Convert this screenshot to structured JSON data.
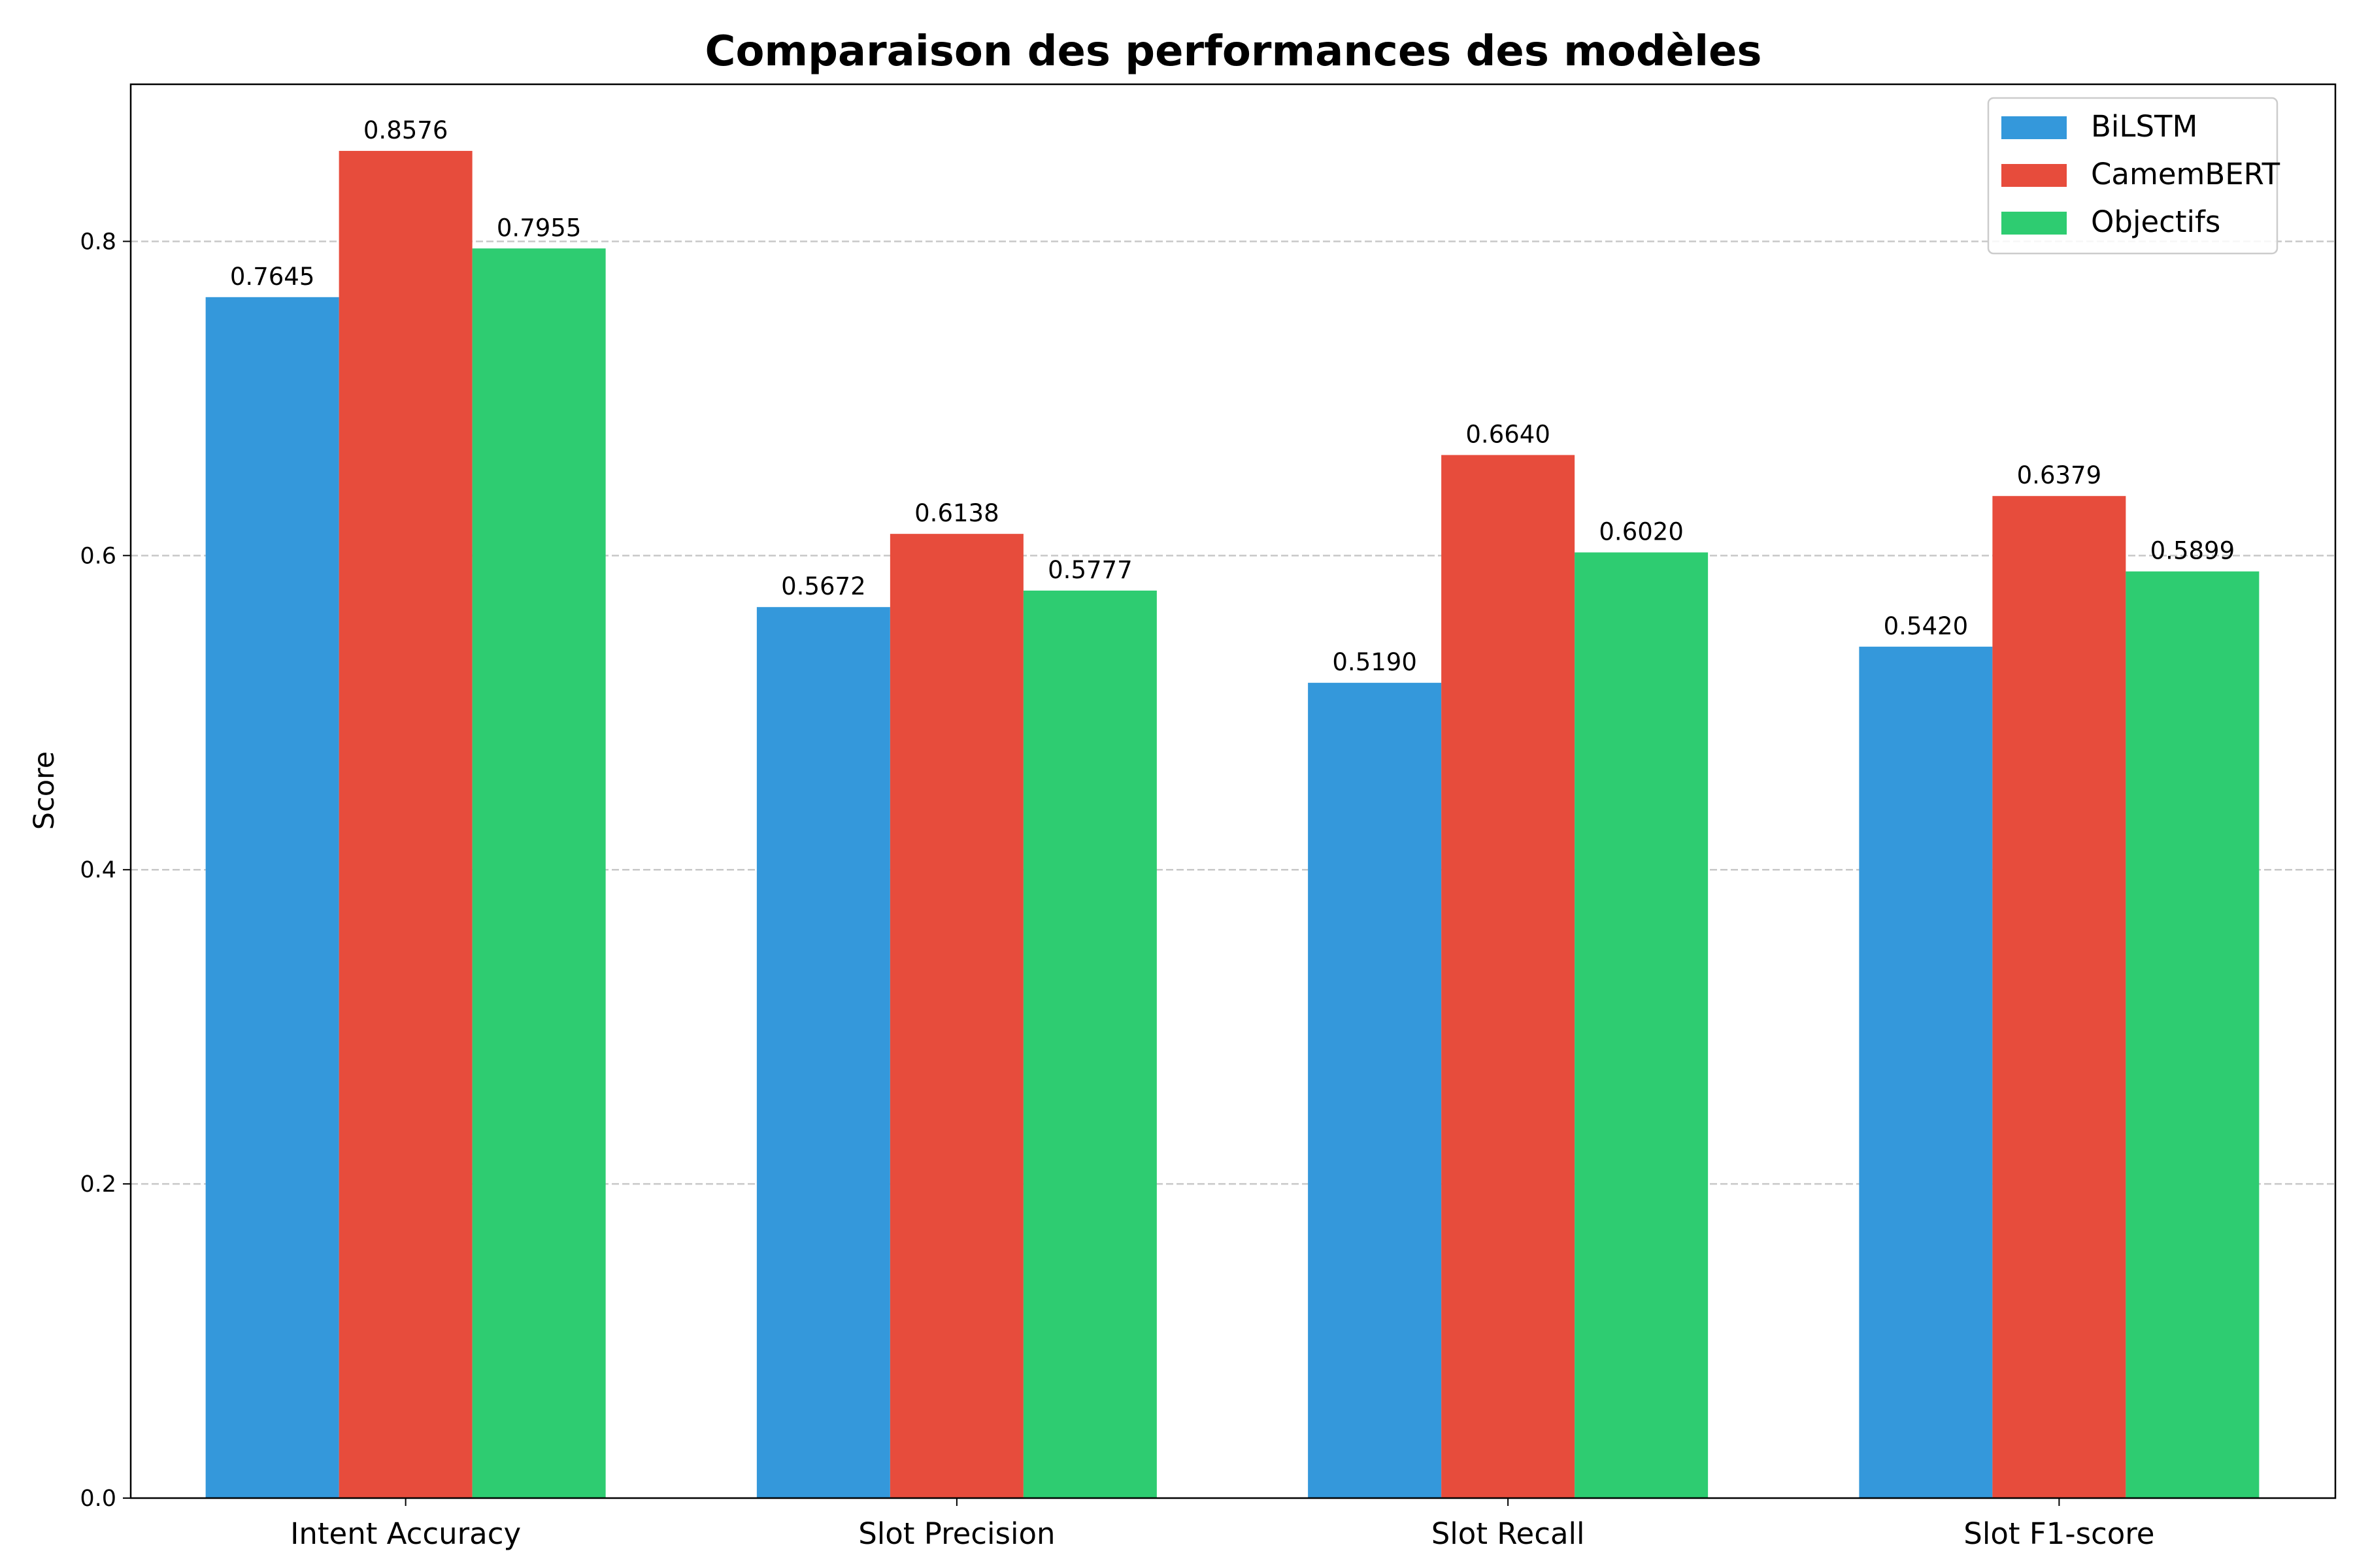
{
  "chart_data": {
    "type": "bar",
    "title": "Comparaison des performances des modèles",
    "xlabel": "",
    "ylabel": "Score",
    "ylim": [
      0,
      0.9
    ],
    "yticks": [
      "0.0",
      "0.2",
      "0.4",
      "0.6",
      "0.8"
    ],
    "grid": "y-dashed",
    "legend_position": "top-right",
    "categories": [
      "Intent Accuracy",
      "Slot Precision",
      "Slot Recall",
      "Slot F1-score"
    ],
    "series": [
      {
        "name": "BiLSTM",
        "color": "#3498db",
        "values": [
          0.7645,
          0.5672,
          0.519,
          0.542
        ],
        "labels": [
          "0.7645",
          "0.5672",
          "0.5190",
          "0.5420"
        ]
      },
      {
        "name": "CamemBERT",
        "color": "#e74c3c",
        "values": [
          0.8576,
          0.6138,
          0.664,
          0.6379
        ],
        "labels": [
          "0.8576",
          "0.6138",
          "0.6640",
          "0.6379"
        ]
      },
      {
        "name": "Objectifs",
        "color": "#2ecc71",
        "values": [
          0.7955,
          0.5777,
          0.602,
          0.5899
        ],
        "labels": [
          "0.7955",
          "0.5777",
          "0.6020",
          "0.5899"
        ]
      }
    ]
  }
}
